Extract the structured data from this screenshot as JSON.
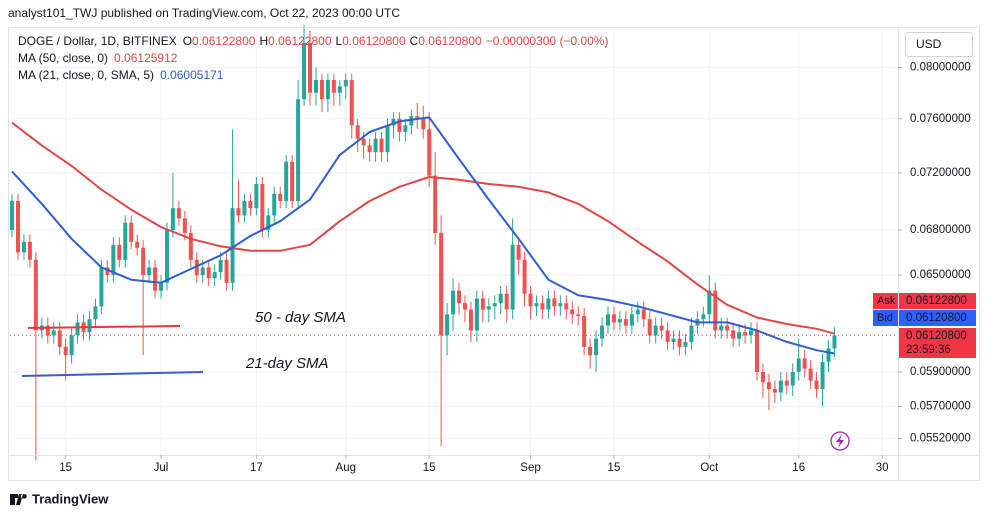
{
  "chart_data": {
    "type": "candlestick",
    "published": "analyst101_TWJ published on TradingView.com, Oct 22, 2023 00:00 UTC",
    "symbol": "DOGE / Dollar, 1D, BITFINEX",
    "ohlc_legend": [
      {
        "label": "O",
        "value": "0.06122800"
      },
      {
        "label": "H",
        "value": "0.06122800"
      },
      {
        "label": "L",
        "value": "0.06120800"
      },
      {
        "label": "C",
        "value": "0.06120800"
      }
    ],
    "change": "−0.00000300 (−0.00%)",
    "currency": "USD",
    "footer": "TradingView",
    "log_scale": true,
    "grid": true,
    "up_color": "#26a69a",
    "down_color": "#ef5350",
    "xlim": [
      -0.34,
      148.66
    ],
    "ylim": [
      0.0543,
      0.0833
    ],
    "xticks": [
      {
        "value": 9,
        "label": "15"
      },
      {
        "value": 25,
        "label": "Jul"
      },
      {
        "value": 41,
        "label": "17"
      },
      {
        "value": 56,
        "label": "Aug"
      },
      {
        "value": 70,
        "label": "15"
      },
      {
        "value": 87,
        "label": "Sep"
      },
      {
        "value": 101,
        "label": "15"
      },
      {
        "value": 117,
        "label": "Oct"
      },
      {
        "value": 132,
        "label": "16"
      },
      {
        "value": 146,
        "label": "30"
      }
    ],
    "yticks": [
      {
        "value": 0.08,
        "label": "0.08000000"
      },
      {
        "value": 0.076,
        "label": "0.07600000"
      },
      {
        "value": 0.072,
        "label": "0.07200000"
      },
      {
        "value": 0.068,
        "label": "0.06800000"
      },
      {
        "value": 0.065,
        "label": "0.06500000"
      },
      {
        "value": 0.059,
        "label": "0.05900000"
      },
      {
        "value": 0.057,
        "label": "0.05700000"
      },
      {
        "value": 0.0552,
        "label": "0.05520000"
      }
    ],
    "open": [
      0.068,
      0.07,
      0.0665,
      0.0672,
      0.066,
      0.0615,
      0.0618,
      0.0612,
      0.0615,
      0.0605,
      0.06,
      0.0612,
      0.062,
      0.0614,
      0.0622,
      0.063,
      0.0655,
      0.065,
      0.067,
      0.066,
      0.0685,
      0.0672,
      0.0668,
      0.065,
      0.0655,
      0.064,
      0.0645,
      0.068,
      0.0695,
      0.0688,
      0.0678,
      0.066,
      0.065,
      0.0655,
      0.0648,
      0.0652,
      0.066,
      0.0645,
      0.0695,
      0.069,
      0.07,
      0.0695,
      0.0712,
      0.068,
      0.069,
      0.0705,
      0.07,
      0.0728,
      0.07,
      0.0775,
      0.082,
      0.078,
      0.079,
      0.0775,
      0.079,
      0.078,
      0.0785,
      0.079,
      0.0755,
      0.0745,
      0.074,
      0.0735,
      0.0745,
      0.0735,
      0.0755,
      0.076,
      0.075,
      0.0755,
      0.0762,
      0.076,
      0.0752,
      0.0718,
      0.0678,
      0.0612,
      0.0625,
      0.064,
      0.0632,
      0.0628,
      0.0615,
      0.0635,
      0.0628,
      0.063,
      0.0632,
      0.0638,
      0.0628,
      0.067,
      0.066,
      0.0638,
      0.063,
      0.0632,
      0.0628,
      0.0635,
      0.063,
      0.0632,
      0.0628,
      0.0625,
      0.0624,
      0.0605,
      0.06,
      0.061,
      0.0618,
      0.0625,
      0.062,
      0.0622,
      0.0618,
      0.0625,
      0.0628,
      0.0622,
      0.0612,
      0.0618,
      0.0615,
      0.0608,
      0.061,
      0.0605,
      0.0608,
      0.0618,
      0.0622,
      0.0625,
      0.064,
      0.0615,
      0.0618,
      0.0615,
      0.061,
      0.0614,
      0.0612,
      0.0615,
      0.059,
      0.0584,
      0.058,
      0.0578,
      0.0585,
      0.0582,
      0.059,
      0.0598,
      0.0592,
      0.0585,
      0.058,
      0.0596,
      0.0604
    ],
    "high": [
      0.0705,
      0.0705,
      0.0677,
      0.0677,
      0.0665,
      0.0623,
      0.0623,
      0.062,
      0.062,
      0.061,
      0.0617,
      0.0625,
      0.0625,
      0.0627,
      0.0635,
      0.066,
      0.066,
      0.0675,
      0.0675,
      0.069,
      0.069,
      0.0677,
      0.0673,
      0.066,
      0.066,
      0.065,
      0.0685,
      0.072,
      0.07,
      0.0693,
      0.0683,
      0.0665,
      0.066,
      0.066,
      0.0657,
      0.0665,
      0.0665,
      0.0752,
      0.0715,
      0.0705,
      0.0705,
      0.0717,
      0.0717,
      0.0695,
      0.071,
      0.071,
      0.0733,
      0.0733,
      0.079,
      0.0835,
      0.083,
      0.08,
      0.0795,
      0.0795,
      0.0795,
      0.079,
      0.0795,
      0.0795,
      0.076,
      0.075,
      0.0745,
      0.075,
      0.075,
      0.076,
      0.0765,
      0.0765,
      0.076,
      0.0767,
      0.0772,
      0.077,
      0.0765,
      0.0735,
      0.069,
      0.0632,
      0.0648,
      0.0645,
      0.0637,
      0.0633,
      0.064,
      0.064,
      0.0635,
      0.0637,
      0.0643,
      0.0643,
      0.0688,
      0.0675,
      0.0665,
      0.0643,
      0.0637,
      0.0637,
      0.064,
      0.064,
      0.0637,
      0.0637,
      0.0633,
      0.063,
      0.0629,
      0.061,
      0.0615,
      0.0623,
      0.063,
      0.063,
      0.0627,
      0.0627,
      0.063,
      0.0633,
      0.0633,
      0.0627,
      0.0623,
      0.0623,
      0.062,
      0.0615,
      0.0615,
      0.0613,
      0.0623,
      0.0627,
      0.063,
      0.065,
      0.0645,
      0.0623,
      0.0623,
      0.062,
      0.0619,
      0.0619,
      0.062,
      0.062,
      0.0595,
      0.0589,
      0.0585,
      0.059,
      0.059,
      0.0595,
      0.061,
      0.0603,
      0.0597,
      0.059,
      0.0601,
      0.0609,
      0.0617
    ],
    "low": [
      0.0675,
      0.066,
      0.066,
      0.0655,
      0.054,
      0.061,
      0.0607,
      0.0607,
      0.06,
      0.0585,
      0.0595,
      0.0607,
      0.0609,
      0.0609,
      0.0617,
      0.0625,
      0.0645,
      0.0645,
      0.0655,
      0.0655,
      0.0667,
      0.0663,
      0.06,
      0.0645,
      0.0635,
      0.0635,
      0.064,
      0.0675,
      0.0683,
      0.0673,
      0.0655,
      0.0645,
      0.0645,
      0.0643,
      0.0643,
      0.0647,
      0.064,
      0.064,
      0.0685,
      0.0685,
      0.069,
      0.069,
      0.0675,
      0.0675,
      0.0685,
      0.0695,
      0.0695,
      0.0695,
      0.0695,
      0.077,
      0.077,
      0.077,
      0.0765,
      0.0765,
      0.077,
      0.077,
      0.0775,
      0.0745,
      0.0735,
      0.073,
      0.0728,
      0.0728,
      0.0728,
      0.0728,
      0.0745,
      0.0743,
      0.0743,
      0.0748,
      0.0752,
      0.0745,
      0.071,
      0.067,
      0.0548,
      0.06,
      0.0615,
      0.0625,
      0.062,
      0.0608,
      0.0608,
      0.062,
      0.062,
      0.0622,
      0.0625,
      0.062,
      0.0622,
      0.065,
      0.063,
      0.0622,
      0.0624,
      0.0622,
      0.0622,
      0.0624,
      0.0624,
      0.0622,
      0.0619,
      0.0618,
      0.06,
      0.0592,
      0.059,
      0.0605,
      0.0613,
      0.0615,
      0.0615,
      0.0613,
      0.0613,
      0.062,
      0.0617,
      0.0607,
      0.0607,
      0.061,
      0.0603,
      0.0603,
      0.06,
      0.06,
      0.0603,
      0.0613,
      0.0617,
      0.062,
      0.061,
      0.061,
      0.061,
      0.0605,
      0.0605,
      0.0607,
      0.0607,
      0.0585,
      0.0575,
      0.0568,
      0.0572,
      0.0573,
      0.0577,
      0.0576,
      0.0585,
      0.0587,
      0.058,
      0.0575,
      0.057,
      0.059,
      0.0599
    ],
    "close": [
      0.07,
      0.0665,
      0.0672,
      0.066,
      0.0615,
      0.0618,
      0.0612,
      0.0615,
      0.0605,
      0.06,
      0.0612,
      0.062,
      0.0614,
      0.0622,
      0.063,
      0.0655,
      0.065,
      0.067,
      0.066,
      0.0685,
      0.0672,
      0.0668,
      0.065,
      0.0655,
      0.064,
      0.0645,
      0.068,
      0.0695,
      0.0688,
      0.0678,
      0.066,
      0.065,
      0.0655,
      0.0648,
      0.0652,
      0.066,
      0.0645,
      0.0695,
      0.069,
      0.07,
      0.0695,
      0.0712,
      0.068,
      0.069,
      0.0705,
      0.07,
      0.0728,
      0.07,
      0.0775,
      0.082,
      0.078,
      0.079,
      0.0775,
      0.079,
      0.078,
      0.0785,
      0.079,
      0.0755,
      0.0745,
      0.074,
      0.0735,
      0.0745,
      0.0735,
      0.0755,
      0.076,
      0.075,
      0.0755,
      0.0762,
      0.076,
      0.0752,
      0.0718,
      0.0678,
      0.0612,
      0.0625,
      0.064,
      0.0632,
      0.0628,
      0.0615,
      0.0635,
      0.0628,
      0.063,
      0.0632,
      0.0638,
      0.0628,
      0.067,
      0.066,
      0.0638,
      0.063,
      0.0632,
      0.0628,
      0.0635,
      0.063,
      0.0632,
      0.0628,
      0.0625,
      0.0624,
      0.0605,
      0.06,
      0.061,
      0.0618,
      0.0625,
      0.062,
      0.0622,
      0.0618,
      0.0625,
      0.0628,
      0.0622,
      0.0612,
      0.0618,
      0.0615,
      0.0608,
      0.061,
      0.0605,
      0.0608,
      0.0618,
      0.0622,
      0.0625,
      0.064,
      0.0615,
      0.0618,
      0.0615,
      0.061,
      0.0614,
      0.0612,
      0.0615,
      0.059,
      0.0584,
      0.058,
      0.0578,
      0.0585,
      0.0582,
      0.059,
      0.0598,
      0.0592,
      0.0585,
      0.058,
      0.0596,
      0.0604,
      0.0612
    ],
    "series": [
      {
        "name": "MA (50, close, 0)",
        "legend_value": "0.06125912",
        "color": "#e04646",
        "x": [
          0,
          5,
          10,
          15,
          20,
          25,
          30,
          35,
          40,
          45,
          50,
          55,
          60,
          65,
          70,
          75,
          80,
          85,
          90,
          95,
          100,
          105,
          110,
          115,
          120,
          125,
          130,
          135,
          138
        ],
        "values": [
          0.0757,
          0.074,
          0.0725,
          0.0708,
          0.0694,
          0.0682,
          0.0674,
          0.0669,
          0.0666,
          0.0666,
          0.067,
          0.0686,
          0.07,
          0.071,
          0.0717,
          0.0715,
          0.0712,
          0.071,
          0.0706,
          0.0698,
          0.0686,
          0.0672,
          0.0659,
          0.0644,
          0.0631,
          0.0623,
          0.0619,
          0.0616,
          0.0613
        ]
      },
      {
        "name": "MA (21, close, 0, SMA, 5)",
        "legend_value": "0.06005171",
        "color": "#2f5fd0",
        "x": [
          0,
          5,
          10,
          15,
          20,
          25,
          30,
          35,
          40,
          45,
          50,
          55,
          60,
          65,
          70,
          75,
          80,
          85,
          90,
          95,
          100,
          105,
          110,
          115,
          120,
          125,
          130,
          135,
          138
        ],
        "values": [
          0.0721,
          0.0698,
          0.0674,
          0.0655,
          0.0647,
          0.0645,
          0.0654,
          0.0663,
          0.0676,
          0.0686,
          0.0701,
          0.0733,
          0.075,
          0.0758,
          0.0761,
          0.073,
          0.0701,
          0.0674,
          0.0647,
          0.0637,
          0.0634,
          0.063,
          0.0625,
          0.062,
          0.062,
          0.0615,
          0.0608,
          0.0603,
          0.0601
        ]
      }
    ],
    "annotations": [
      {
        "text": "50 - day SMA",
        "color": "#e53935"
      },
      {
        "text": "21-day SMA",
        "color": "#3f5bc4"
      }
    ],
    "price_labels": [
      {
        "name": "Ask",
        "value": "0.06122800",
        "color": "#f23645"
      },
      {
        "name": "Bid",
        "value": "0.06120800",
        "color": "#2962ff"
      }
    ],
    "last_price": {
      "value": "0.06120800",
      "countdown": "23:59:36",
      "color": "#f23645"
    }
  }
}
